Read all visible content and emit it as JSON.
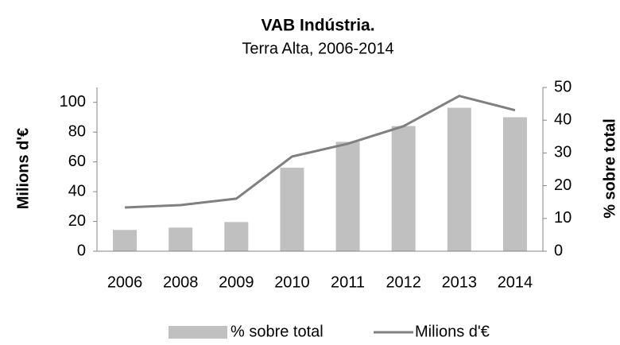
{
  "chart_data": {
    "type": "bar_line",
    "title": "VAB Indústria.",
    "subtitle": "Terra Alta, 2006-2014",
    "ylabel": "Milions d'€",
    "y2label": "% sobre total",
    "categories": [
      "2006",
      "2008",
      "2009",
      "2010",
      "2011",
      "2012",
      "2013",
      "2014"
    ],
    "series": [
      {
        "name": "% sobre total",
        "type": "bar",
        "axis": "y2",
        "color": "#c0c0c0",
        "values": [
          6.5,
          7.2,
          8.9,
          25.5,
          33.4,
          38.2,
          43.8,
          40.9
        ]
      },
      {
        "name": "Milions d'€",
        "type": "line",
        "axis": "y",
        "color": "#808080",
        "values": [
          29.4,
          31.0,
          35.3,
          63.6,
          72.2,
          84.0,
          104.3,
          94.7
        ]
      }
    ],
    "ylim": [
      0,
      110
    ],
    "yticks": [
      0,
      20,
      40,
      60,
      80,
      100
    ],
    "y2lim": [
      0,
      50
    ],
    "y2ticks": [
      0,
      10,
      20,
      30,
      40,
      50
    ],
    "grid": false,
    "legend": "bottom"
  }
}
